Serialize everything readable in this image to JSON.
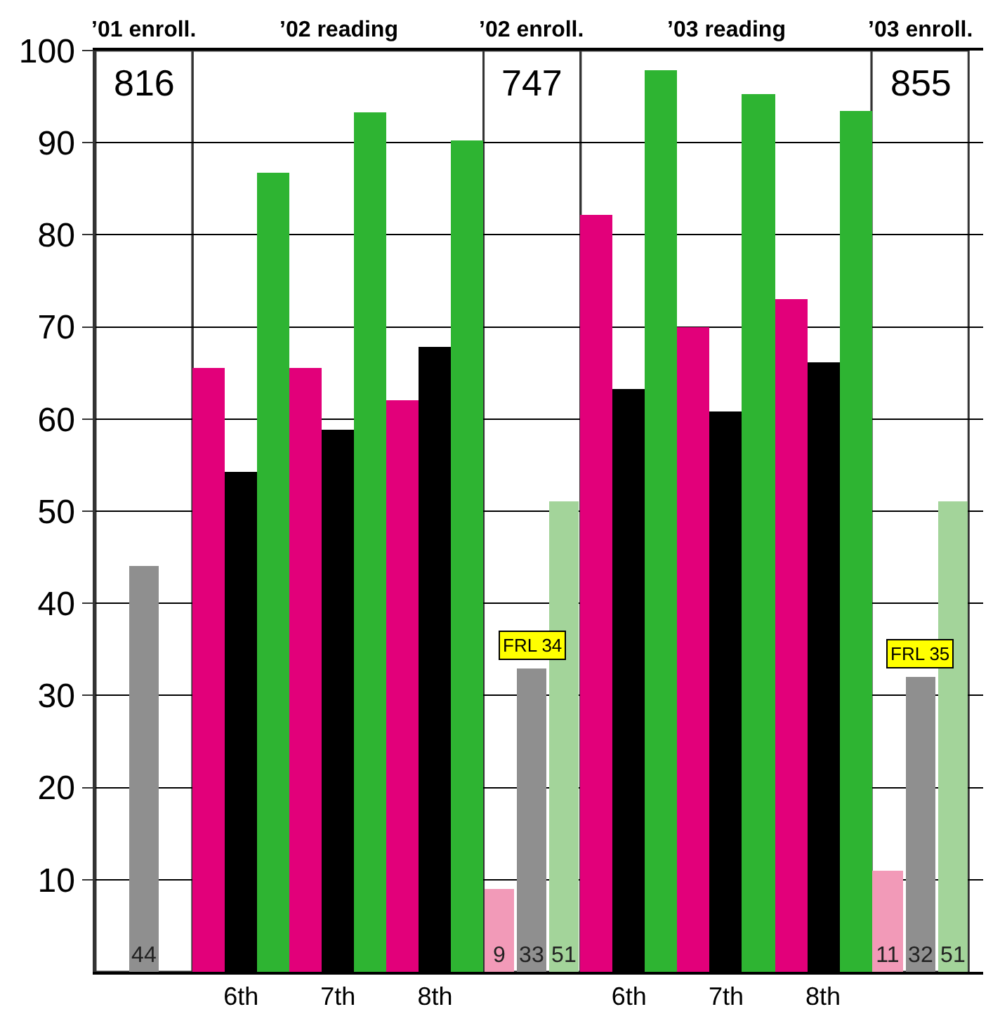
{
  "chart_data": {
    "type": "bar",
    "categories": [
      null,
      "6th",
      "7th",
      "8th",
      null,
      "6th",
      "7th",
      "8th",
      null
    ],
    "series": [
      {
        "colors": [
          "#f29ab8",
          "#e2007a",
          "#e2007a",
          "#e2007a",
          "#f29ab8",
          "#e2007a",
          "#e2007a",
          "#e2007a",
          "#f29ab8"
        ],
        "values": [
          null,
          65.5,
          65.5,
          62.1,
          9,
          82.2,
          70.0,
          73.0,
          11
        ],
        "value_labels": [
          null,
          null,
          null,
          null,
          "9",
          null,
          null,
          null,
          "11"
        ]
      },
      {
        "colors": [
          "#8f8f8f",
          "#000000",
          "#000000",
          "#000000",
          "#8f8f8f",
          "#000000",
          "#000000",
          "#000000",
          "#8f8f8f"
        ],
        "values": [
          44,
          54.3,
          58.8,
          67.8,
          33,
          63.2,
          60.9,
          66.1,
          32
        ],
        "value_labels": [
          "44",
          null,
          null,
          null,
          "33",
          null,
          null,
          null,
          "32"
        ]
      },
      {
        "colors": [
          "#a3d49a",
          "#2eb432",
          "#2eb432",
          "#2eb432",
          "#a3d49a",
          "#2eb432",
          "#2eb432",
          "#2eb432",
          "#a3d49a"
        ],
        "values": [
          null,
          86.8,
          93.3,
          90.2,
          51,
          97.8,
          95.2,
          93.5,
          51
        ],
        "value_labels": [
          null,
          null,
          null,
          null,
          "51",
          null,
          null,
          null,
          "51"
        ]
      }
    ],
    "annotations": [
      "’01 enroll.",
      "’02 reading",
      "’02 enroll.",
      "’03 reading",
      "’03 enroll.",
      "816",
      "747",
      "855",
      "FRL 34",
      "FRL 35"
    ],
    "ylim": [
      0,
      100
    ],
    "yticks": [
      10,
      20,
      30,
      40,
      50,
      60,
      70,
      80,
      90,
      100
    ],
    "grid": "y"
  }
}
